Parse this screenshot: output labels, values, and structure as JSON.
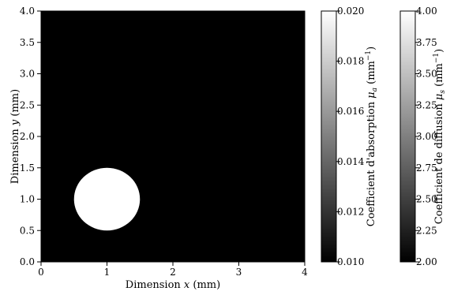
{
  "chart_data": {
    "type": "heatmap",
    "title": "",
    "xlabel": "Dimension x (mm)",
    "ylabel": "Dimension y (mm)",
    "xlim": [
      0,
      4
    ],
    "ylim": [
      0,
      4
    ],
    "x_ticks": [
      "0",
      "1",
      "2",
      "3",
      "4"
    ],
    "y_ticks": [
      "0.0",
      "0.5",
      "1.0",
      "1.5",
      "2.0",
      "2.5",
      "3.0",
      "3.5",
      "4.0"
    ],
    "background_value": "minimum",
    "inclusion": {
      "shape": "circle",
      "center_x": 1.0,
      "center_y": 1.0,
      "radius": 0.5,
      "value": "maximum"
    },
    "colormap": "gray",
    "grid": false,
    "colorbars": [
      {
        "label": "Coefficient d'absorption μa (mm⁻¹)",
        "range": [
          0.01,
          0.02
        ],
        "tick_labels": [
          "0.010",
          "0.012",
          "0.014",
          "0.016",
          "0.018",
          "0.020"
        ]
      },
      {
        "label": "Coefficient de diffusion μs (mm⁻¹)",
        "range": [
          2.0,
          4.0
        ],
        "tick_labels": [
          "2.00",
          "2.25",
          "2.50",
          "2.75",
          "3.00",
          "3.25",
          "3.50",
          "3.75",
          "4.00"
        ]
      }
    ]
  }
}
